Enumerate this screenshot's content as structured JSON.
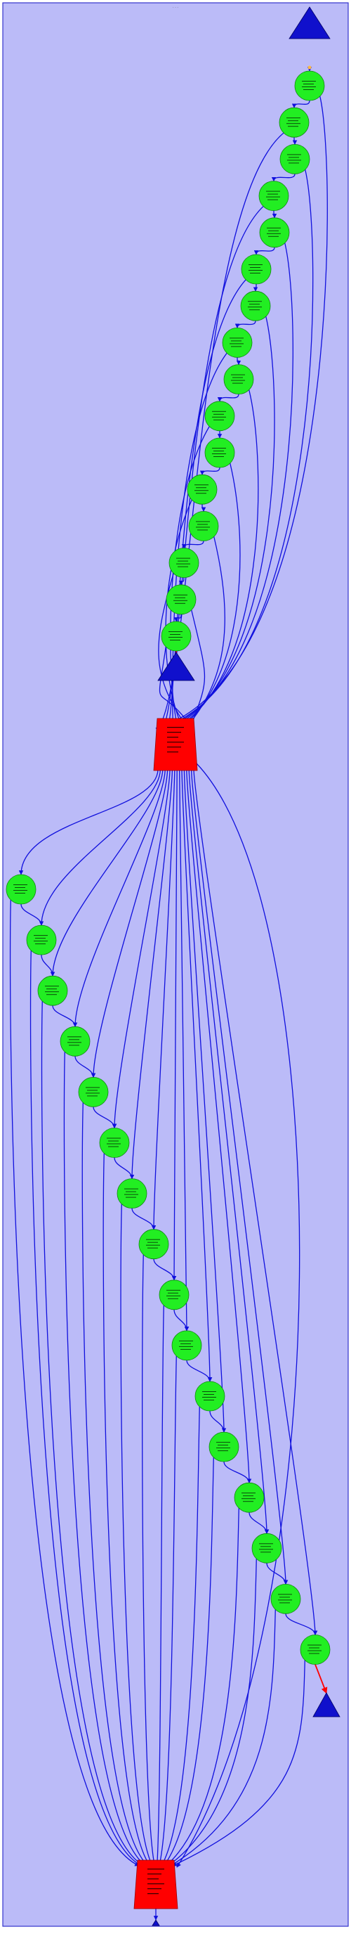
{
  "diagram": {
    "title": "",
    "colors": {
      "cluster_fill": "#bbbbf8",
      "cluster_stroke": "#3333cc",
      "edge": "#1010dd",
      "edge_red": "#ff0000",
      "node_green": "#22ee22",
      "node_green_stroke": "#118811",
      "node_red": "#ff0000",
      "node_triangle": "#1010cc",
      "start_marker": "#ffbb44"
    }
  }
}
